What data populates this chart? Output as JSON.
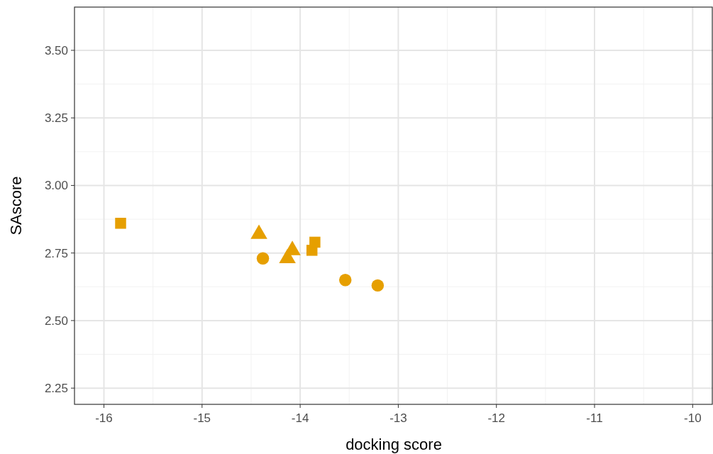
{
  "chart_data": {
    "type": "scatter",
    "xlabel": "docking score",
    "ylabel": "SAscore",
    "xlim": [
      -16.3,
      -9.8
    ],
    "ylim": [
      2.19,
      3.66
    ],
    "xticks": [
      -16,
      -15,
      -14,
      -13,
      -12,
      -11,
      -10
    ],
    "yticks": [
      {
        "value": 2.25,
        "label": "2.25"
      },
      {
        "value": 2.5,
        "label": "2.50"
      },
      {
        "value": 2.75,
        "label": "2.75"
      },
      {
        "value": 3,
        "label": "3.00"
      },
      {
        "value": 3.25,
        "label": "3.25"
      },
      {
        "value": 3.5,
        "label": "3.50"
      }
    ],
    "grid": true,
    "series": [
      {
        "color": "#e69f00",
        "marker": "square",
        "x": [
          -15.83,
          -13.88,
          -13.85
        ],
        "values": [
          2.86,
          2.76,
          2.79
        ]
      },
      {
        "color": "#e69f00",
        "marker": "triangle",
        "x": [
          -14.42,
          -14.08,
          -14.13
        ],
        "values": [
          2.82,
          2.76,
          2.73
        ]
      },
      {
        "color": "#e69f00",
        "marker": "circle",
        "x": [
          -14.38,
          -13.54,
          -13.21
        ],
        "values": [
          2.73,
          2.65,
          2.63
        ]
      }
    ]
  }
}
